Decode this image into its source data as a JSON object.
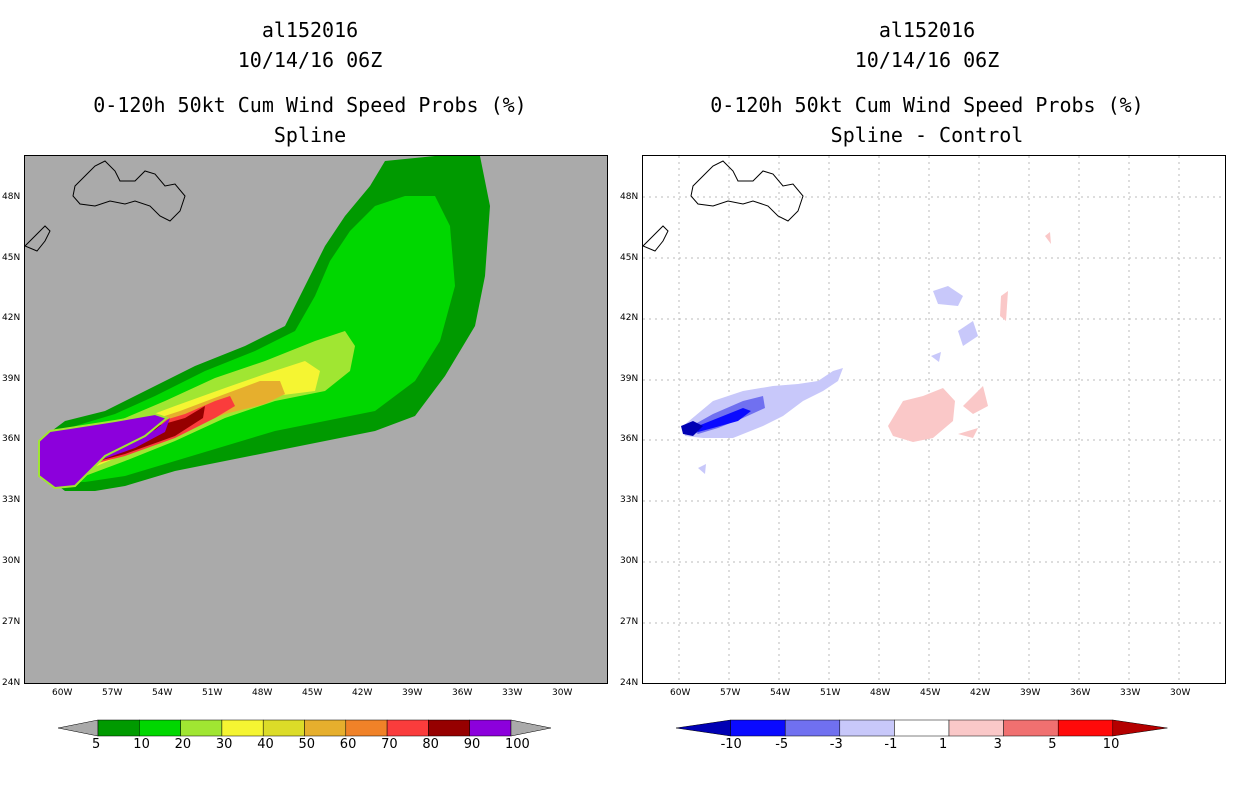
{
  "left": {
    "title_line1": "al152016",
    "title_line2": "10/14/16 06Z",
    "title_line3": "0-120h 50kt Cum Wind Speed Probs (%)",
    "title_line4": "Spline",
    "colorbar": {
      "labels": [
        "5",
        "10",
        "20",
        "30",
        "40",
        "50",
        "60",
        "70",
        "80",
        "90",
        "100"
      ],
      "colors": [
        "#009a00",
        "#00d700",
        "#a0e632",
        "#f5f532",
        "#dcdc28",
        "#e6af2d",
        "#f08228",
        "#fa3c3c",
        "#960000",
        "#8c00dc"
      ]
    }
  },
  "right": {
    "title_line1": "al152016",
    "title_line2": "10/14/16 06Z",
    "title_line3": "0-120h 50kt Cum Wind Speed Probs (%)",
    "title_line4": "Spline - Control",
    "colorbar": {
      "labels": [
        "-10",
        "-5",
        "-3",
        "-1",
        "1",
        "3",
        "5",
        "10"
      ],
      "colors": [
        "#0000b4",
        "#0a0aff",
        "#7070f0",
        "#c8c8fa",
        "#ffffff",
        "#fac8c8",
        "#f07070",
        "#ff0a0a",
        "#b40000"
      ]
    }
  },
  "axes": {
    "lat_labels": [
      "48N",
      "45N",
      "42N",
      "39N",
      "36N",
      "33N",
      "30N",
      "27N",
      "24N"
    ],
    "lon_labels": [
      "60W",
      "57W",
      "54W",
      "51W",
      "48W",
      "45W",
      "42W",
      "39W",
      "36W",
      "33W",
      "30W"
    ]
  },
  "colors": {
    "land_background": "#aaaaaa",
    "grid": "#aaaaaa"
  }
}
